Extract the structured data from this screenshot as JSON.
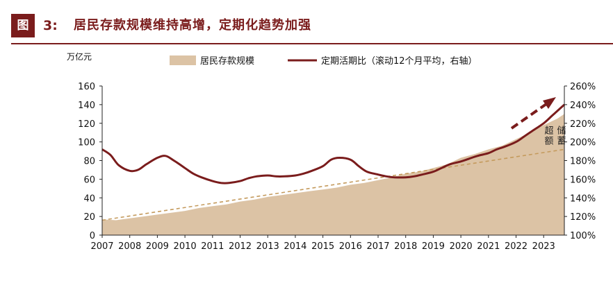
{
  "header": {
    "badge": "图",
    "number": "3:",
    "title": "居民存款规模维持高增，定期化趋势加强"
  },
  "chart_data": {
    "type": "area+line",
    "left_axis_unit": "万亿元",
    "left_ylim": [
      0,
      160
    ],
    "left_ticks": [
      "0",
      "20",
      "40",
      "60",
      "80",
      "100",
      "120",
      "140",
      "160"
    ],
    "right_ylim": [
      100,
      260
    ],
    "right_ticks": [
      "100%",
      "120%",
      "140%",
      "160%",
      "180%",
      "200%",
      "220%",
      "240%",
      "260%"
    ],
    "x_ticks": [
      "2007",
      "2008",
      "2009",
      "2010",
      "2011",
      "2012",
      "2013",
      "2014",
      "2015",
      "2016",
      "2017",
      "2018",
      "2019",
      "2020",
      "2021",
      "2022",
      "2023"
    ],
    "xlim": [
      2007.0,
      2023.75
    ],
    "legend": {
      "area_label": "居民存款规模",
      "line_label": "定期活期比（滚动12个月平均，右轴）"
    },
    "annotation": [
      "超额",
      "储蓄"
    ],
    "colors": {
      "area": "#dcc3a5",
      "line": "#7a1c1c",
      "trend": "#c49a5c",
      "arrow": "#7a1c1c"
    },
    "series": [
      {
        "name": "居民存款规模",
        "axis": "left",
        "x": [
          2007.0,
          2007.5,
          2008.0,
          2008.5,
          2009.0,
          2009.5,
          2010.0,
          2010.5,
          2011.0,
          2011.5,
          2012.0,
          2012.5,
          2013.0,
          2013.5,
          2014.0,
          2014.5,
          2015.0,
          2015.5,
          2016.0,
          2016.5,
          2017.0,
          2017.5,
          2018.0,
          2018.5,
          2019.0,
          2019.5,
          2020.0,
          2020.5,
          2021.0,
          2021.5,
          2022.0,
          2022.5,
          2023.0,
          2023.5,
          2023.75
        ],
        "values": [
          17,
          16,
          18,
          20,
          22,
          24,
          26,
          29,
          31,
          33,
          36,
          38,
          41,
          43,
          45,
          47,
          49,
          51,
          54,
          56,
          59,
          62,
          66,
          68,
          72,
          76,
          83,
          87,
          92,
          96,
          103,
          110,
          118,
          125,
          130
        ]
      },
      {
        "name": "定期活期比（滚动12个月平均，右轴）",
        "axis": "right",
        "x": [
          2007.0,
          2007.3,
          2007.6,
          2008.0,
          2008.3,
          2008.6,
          2009.0,
          2009.3,
          2009.6,
          2010.0,
          2010.3,
          2010.6,
          2011.0,
          2011.3,
          2011.6,
          2012.0,
          2012.3,
          2012.6,
          2013.0,
          2013.3,
          2013.6,
          2014.0,
          2014.3,
          2014.6,
          2015.0,
          2015.3,
          2015.6,
          2016.0,
          2016.3,
          2016.6,
          2017.0,
          2017.3,
          2017.6,
          2018.0,
          2018.3,
          2018.6,
          2019.0,
          2019.3,
          2019.6,
          2020.0,
          2020.3,
          2020.6,
          2021.0,
          2021.3,
          2021.6,
          2022.0,
          2022.3,
          2022.6,
          2023.0,
          2023.3,
          2023.6,
          2023.75
        ],
        "values": [
          192,
          186,
          175,
          169,
          170,
          176,
          183,
          185,
          180,
          172,
          166,
          162,
          158,
          156,
          156,
          158,
          161,
          163,
          164,
          163,
          163,
          164,
          166,
          169,
          174,
          181,
          183,
          181,
          174,
          168,
          165,
          163,
          162,
          162,
          163,
          165,
          168,
          172,
          176,
          179,
          182,
          185,
          188,
          192,
          195,
          200,
          206,
          212,
          220,
          228,
          236,
          240
        ]
      },
      {
        "name": "",
        "axis": "left",
        "style": "dashed-trend",
        "x": [
          2007.0,
          2023.75
        ],
        "values": [
          16,
          92
        ]
      }
    ]
  }
}
